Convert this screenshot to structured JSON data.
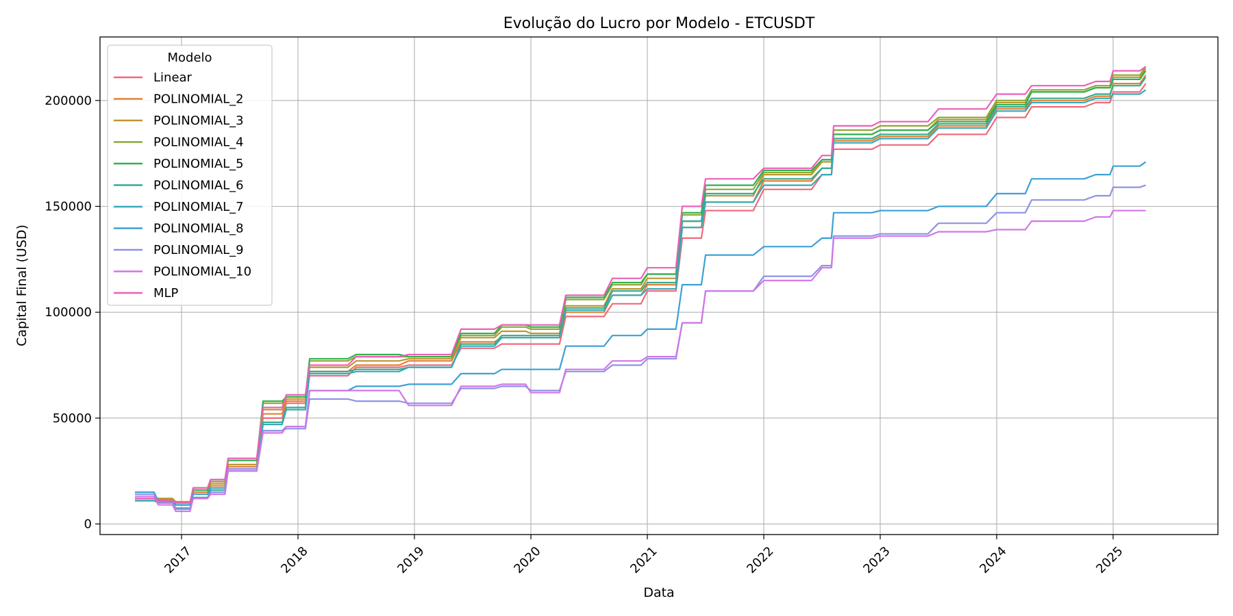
{
  "chart_data": {
    "type": "line",
    "title": "Evolução do Lucro por Modelo - ETCUSDT",
    "xlabel": "Data",
    "ylabel": "Capital Final (USD)",
    "xlim": [
      2016.3,
      2025.9
    ],
    "ylim": [
      -5000,
      230000
    ],
    "xticks": [
      2017,
      2018,
      2019,
      2020,
      2021,
      2022,
      2023,
      2024,
      2025
    ],
    "xtick_labels": [
      "2017",
      "2018",
      "2019",
      "2020",
      "2021",
      "2022",
      "2023",
      "2024",
      "2025"
    ],
    "yticks": [
      0,
      50000,
      100000,
      150000,
      200000
    ],
    "ytick_labels": [
      "0",
      "50000",
      "100000",
      "150000",
      "200000"
    ],
    "grid": true,
    "legend": {
      "title": "Modelo",
      "placement": "upper-left"
    },
    "series": [
      {
        "name": "Linear",
        "color": "#f0697a",
        "x": [
          2016.6,
          2016.8,
          2016.95,
          2017.1,
          2017.25,
          2017.4,
          2017.7,
          2017.9,
          2018.1,
          2018.5,
          2018.95,
          2019.4,
          2019.75,
          2020.0,
          2020.3,
          2020.7,
          2021.0,
          2021.3,
          2021.5,
          2022.0,
          2022.5,
          2022.6,
          2023.0,
          2023.5,
          2024.0,
          2024.3,
          2024.85,
          2025.0,
          2025.28
        ],
        "y": [
          11000,
          10500,
          9000,
          15000,
          20000,
          28000,
          50000,
          57000,
          70000,
          74000,
          75000,
          83000,
          85000,
          85000,
          98000,
          104000,
          110000,
          135000,
          148000,
          158000,
          165000,
          177000,
          179000,
          184000,
          192000,
          197000,
          199000,
          204000,
          208000
        ]
      },
      {
        "name": "POLINOMIAL_2",
        "color": "#e28033",
        "x": [
          2016.6,
          2016.8,
          2016.95,
          2017.1,
          2017.25,
          2017.4,
          2017.7,
          2017.9,
          2018.1,
          2018.5,
          2018.95,
          2019.4,
          2019.75,
          2020.0,
          2020.3,
          2020.7,
          2021.0,
          2021.3,
          2021.5,
          2022.0,
          2022.5,
          2022.6,
          2023.0,
          2023.5,
          2024.0,
          2024.3,
          2024.85,
          2025.0,
          2025.28
        ],
        "y": [
          12000,
          12000,
          10500,
          15000,
          18000,
          27000,
          52000,
          58000,
          72000,
          75000,
          77000,
          86000,
          88000,
          88000,
          100000,
          108000,
          113000,
          140000,
          152000,
          162000,
          168000,
          181000,
          183000,
          188000,
          196000,
          200000,
          202000,
          208000,
          212000
        ]
      },
      {
        "name": "POLINOMIAL_3",
        "color": "#bf9430",
        "x": [
          2016.6,
          2016.8,
          2016.95,
          2017.1,
          2017.25,
          2017.4,
          2017.7,
          2017.9,
          2018.1,
          2018.5,
          2018.95,
          2019.4,
          2019.75,
          2020.0,
          2020.3,
          2020.7,
          2021.0,
          2021.3,
          2021.5,
          2022.0,
          2022.5,
          2022.6,
          2023.0,
          2023.5,
          2024.0,
          2024.3,
          2024.85,
          2025.0,
          2025.28
        ],
        "y": [
          12000,
          12000,
          10000,
          16000,
          19000,
          28000,
          54000,
          59000,
          74000,
          77000,
          78000,
          88000,
          91000,
          90000,
          103000,
          111000,
          116000,
          143000,
          155000,
          165000,
          171000,
          184000,
          186000,
          191000,
          199000,
          204000,
          206000,
          211000,
          215000
        ]
      },
      {
        "name": "POLINOMIAL_4",
        "color": "#8ca836",
        "x": [
          2016.6,
          2016.8,
          2016.95,
          2017.1,
          2017.25,
          2017.4,
          2017.7,
          2017.9,
          2018.1,
          2018.5,
          2018.95,
          2019.4,
          2019.75,
          2020.0,
          2020.3,
          2020.7,
          2021.0,
          2021.3,
          2021.5,
          2022.0,
          2022.5,
          2022.6,
          2023.0,
          2023.5,
          2024.0,
          2024.3,
          2024.85,
          2025.0,
          2025.28
        ],
        "y": [
          12000,
          11500,
          10000,
          17000,
          20000,
          30000,
          57000,
          60000,
          77000,
          79000,
          79000,
          89000,
          93000,
          92000,
          106000,
          113000,
          118000,
          146000,
          158000,
          166000,
          172000,
          186000,
          188000,
          192000,
          200000,
          205000,
          207000,
          212000,
          216000
        ]
      },
      {
        "name": "POLINOMIAL_5",
        "color": "#32b04f",
        "x": [
          2016.6,
          2016.8,
          2016.95,
          2017.1,
          2017.25,
          2017.4,
          2017.7,
          2017.9,
          2018.1,
          2018.5,
          2018.95,
          2019.4,
          2019.75,
          2020.0,
          2020.3,
          2020.7,
          2021.0,
          2021.3,
          2021.5,
          2022.0,
          2022.5,
          2022.6,
          2023.0,
          2023.5,
          2024.0,
          2024.3,
          2024.85,
          2025.0,
          2025.28
        ],
        "y": [
          12000,
          11000,
          9000,
          16000,
          21000,
          30000,
          58000,
          60000,
          78000,
          80000,
          79000,
          90000,
          94000,
          93000,
          107000,
          114000,
          118000,
          147000,
          160000,
          167000,
          172000,
          184000,
          186000,
          190000,
          198000,
          204000,
          206000,
          210000,
          214000
        ]
      },
      {
        "name": "POLINOMIAL_6",
        "color": "#34ab8f",
        "x": [
          2016.6,
          2016.8,
          2016.95,
          2017.1,
          2017.25,
          2017.4,
          2017.7,
          2017.9,
          2018.1,
          2018.5,
          2018.95,
          2019.4,
          2019.75,
          2020.0,
          2020.3,
          2020.7,
          2021.0,
          2021.3,
          2021.5,
          2022.0,
          2022.5,
          2022.6,
          2023.0,
          2023.5,
          2024.0,
          2024.3,
          2024.85,
          2025.0,
          2025.28
        ],
        "y": [
          11000,
          10000,
          7000,
          12000,
          16000,
          26000,
          48000,
          55000,
          72000,
          73000,
          74000,
          85000,
          89000,
          89000,
          102000,
          110000,
          114000,
          143000,
          156000,
          163000,
          168000,
          182000,
          184000,
          189000,
          197000,
          201000,
          203000,
          207000,
          211000
        ]
      },
      {
        "name": "POLINOMIAL_7",
        "color": "#37a9b7",
        "x": [
          2016.6,
          2016.8,
          2016.95,
          2017.1,
          2017.25,
          2017.4,
          2017.7,
          2017.9,
          2018.1,
          2018.5,
          2018.95,
          2019.4,
          2019.75,
          2020.0,
          2020.3,
          2020.7,
          2021.0,
          2021.3,
          2021.5,
          2022.0,
          2022.5,
          2022.6,
          2023.0,
          2023.5,
          2024.0,
          2024.3,
          2024.85,
          2025.0,
          2025.28
        ],
        "y": [
          11000,
          10000,
          7500,
          12500,
          15000,
          25000,
          47000,
          54000,
          71000,
          72000,
          74000,
          84000,
          88000,
          88000,
          101000,
          108000,
          111000,
          140000,
          152000,
          160000,
          165000,
          180000,
          182000,
          187000,
          195000,
          199000,
          201000,
          203000,
          205000
        ]
      },
      {
        "name": "POLINOMIAL_8",
        "color": "#3aa0d6",
        "x": [
          2016.6,
          2016.8,
          2016.95,
          2017.1,
          2017.25,
          2017.4,
          2017.7,
          2017.9,
          2018.1,
          2018.5,
          2018.95,
          2019.4,
          2019.75,
          2020.0,
          2020.3,
          2020.7,
          2021.0,
          2021.3,
          2021.5,
          2022.0,
          2022.5,
          2022.6,
          2023.0,
          2023.5,
          2024.0,
          2024.3,
          2024.85,
          2025.0,
          2025.28
        ],
        "y": [
          15000,
          11000,
          9000,
          14000,
          17000,
          26000,
          44000,
          46000,
          63000,
          65000,
          66000,
          71000,
          73000,
          73000,
          84000,
          89000,
          92000,
          113000,
          127000,
          131000,
          135000,
          147000,
          148000,
          150000,
          156000,
          163000,
          165000,
          169000,
          171000
        ]
      },
      {
        "name": "POLINOMIAL_9",
        "color": "#8e91e8",
        "x": [
          2016.6,
          2016.8,
          2016.95,
          2017.1,
          2017.25,
          2017.4,
          2017.7,
          2017.9,
          2018.1,
          2018.5,
          2018.95,
          2019.4,
          2019.75,
          2020.0,
          2020.3,
          2020.7,
          2021.0,
          2021.3,
          2021.5,
          2022.0,
          2022.5,
          2022.6,
          2023.0,
          2023.5,
          2024.0,
          2024.3,
          2024.85,
          2025.0,
          2025.28
        ],
        "y": [
          14000,
          10000,
          7000,
          12000,
          15000,
          26000,
          44000,
          45000,
          59000,
          58000,
          57000,
          64000,
          65000,
          63000,
          72000,
          75000,
          78000,
          95000,
          110000,
          117000,
          122000,
          136000,
          137000,
          142000,
          147000,
          153000,
          155000,
          159000,
          160000
        ]
      },
      {
        "name": "POLINOMIAL_10",
        "color": "#d076e6",
        "x": [
          2016.6,
          2016.8,
          2016.95,
          2017.1,
          2017.25,
          2017.4,
          2017.7,
          2017.9,
          2018.1,
          2018.5,
          2018.95,
          2019.4,
          2019.75,
          2020.0,
          2020.3,
          2020.7,
          2021.0,
          2021.3,
          2021.5,
          2022.0,
          2022.5,
          2022.6,
          2023.0,
          2023.5,
          2024.0,
          2024.3,
          2024.85,
          2025.0,
          2025.28
        ],
        "y": [
          13000,
          9000,
          6000,
          12000,
          14000,
          25000,
          43000,
          46000,
          63000,
          63000,
          56000,
          65000,
          66000,
          62000,
          73000,
          77000,
          79000,
          95000,
          110000,
          115000,
          121000,
          135000,
          136000,
          138000,
          139000,
          143000,
          145000,
          148000,
          148000
        ]
      },
      {
        "name": "MLP",
        "color": "#ec5fb9",
        "x": [
          2016.6,
          2016.8,
          2016.95,
          2017.1,
          2017.25,
          2017.4,
          2017.7,
          2017.9,
          2018.1,
          2018.5,
          2018.95,
          2019.4,
          2019.75,
          2020.0,
          2020.3,
          2020.7,
          2021.0,
          2021.3,
          2021.5,
          2022.0,
          2022.5,
          2022.6,
          2023.0,
          2023.5,
          2024.0,
          2024.3,
          2024.85,
          2025.0,
          2025.28
        ],
        "y": [
          12000,
          11000,
          10000,
          17000,
          21000,
          31000,
          55000,
          61000,
          75000,
          79000,
          80000,
          92000,
          94000,
          94000,
          108000,
          116000,
          121000,
          150000,
          163000,
          168000,
          174000,
          188000,
          190000,
          196000,
          203000,
          207000,
          209000,
          214000,
          216000
        ]
      }
    ]
  }
}
